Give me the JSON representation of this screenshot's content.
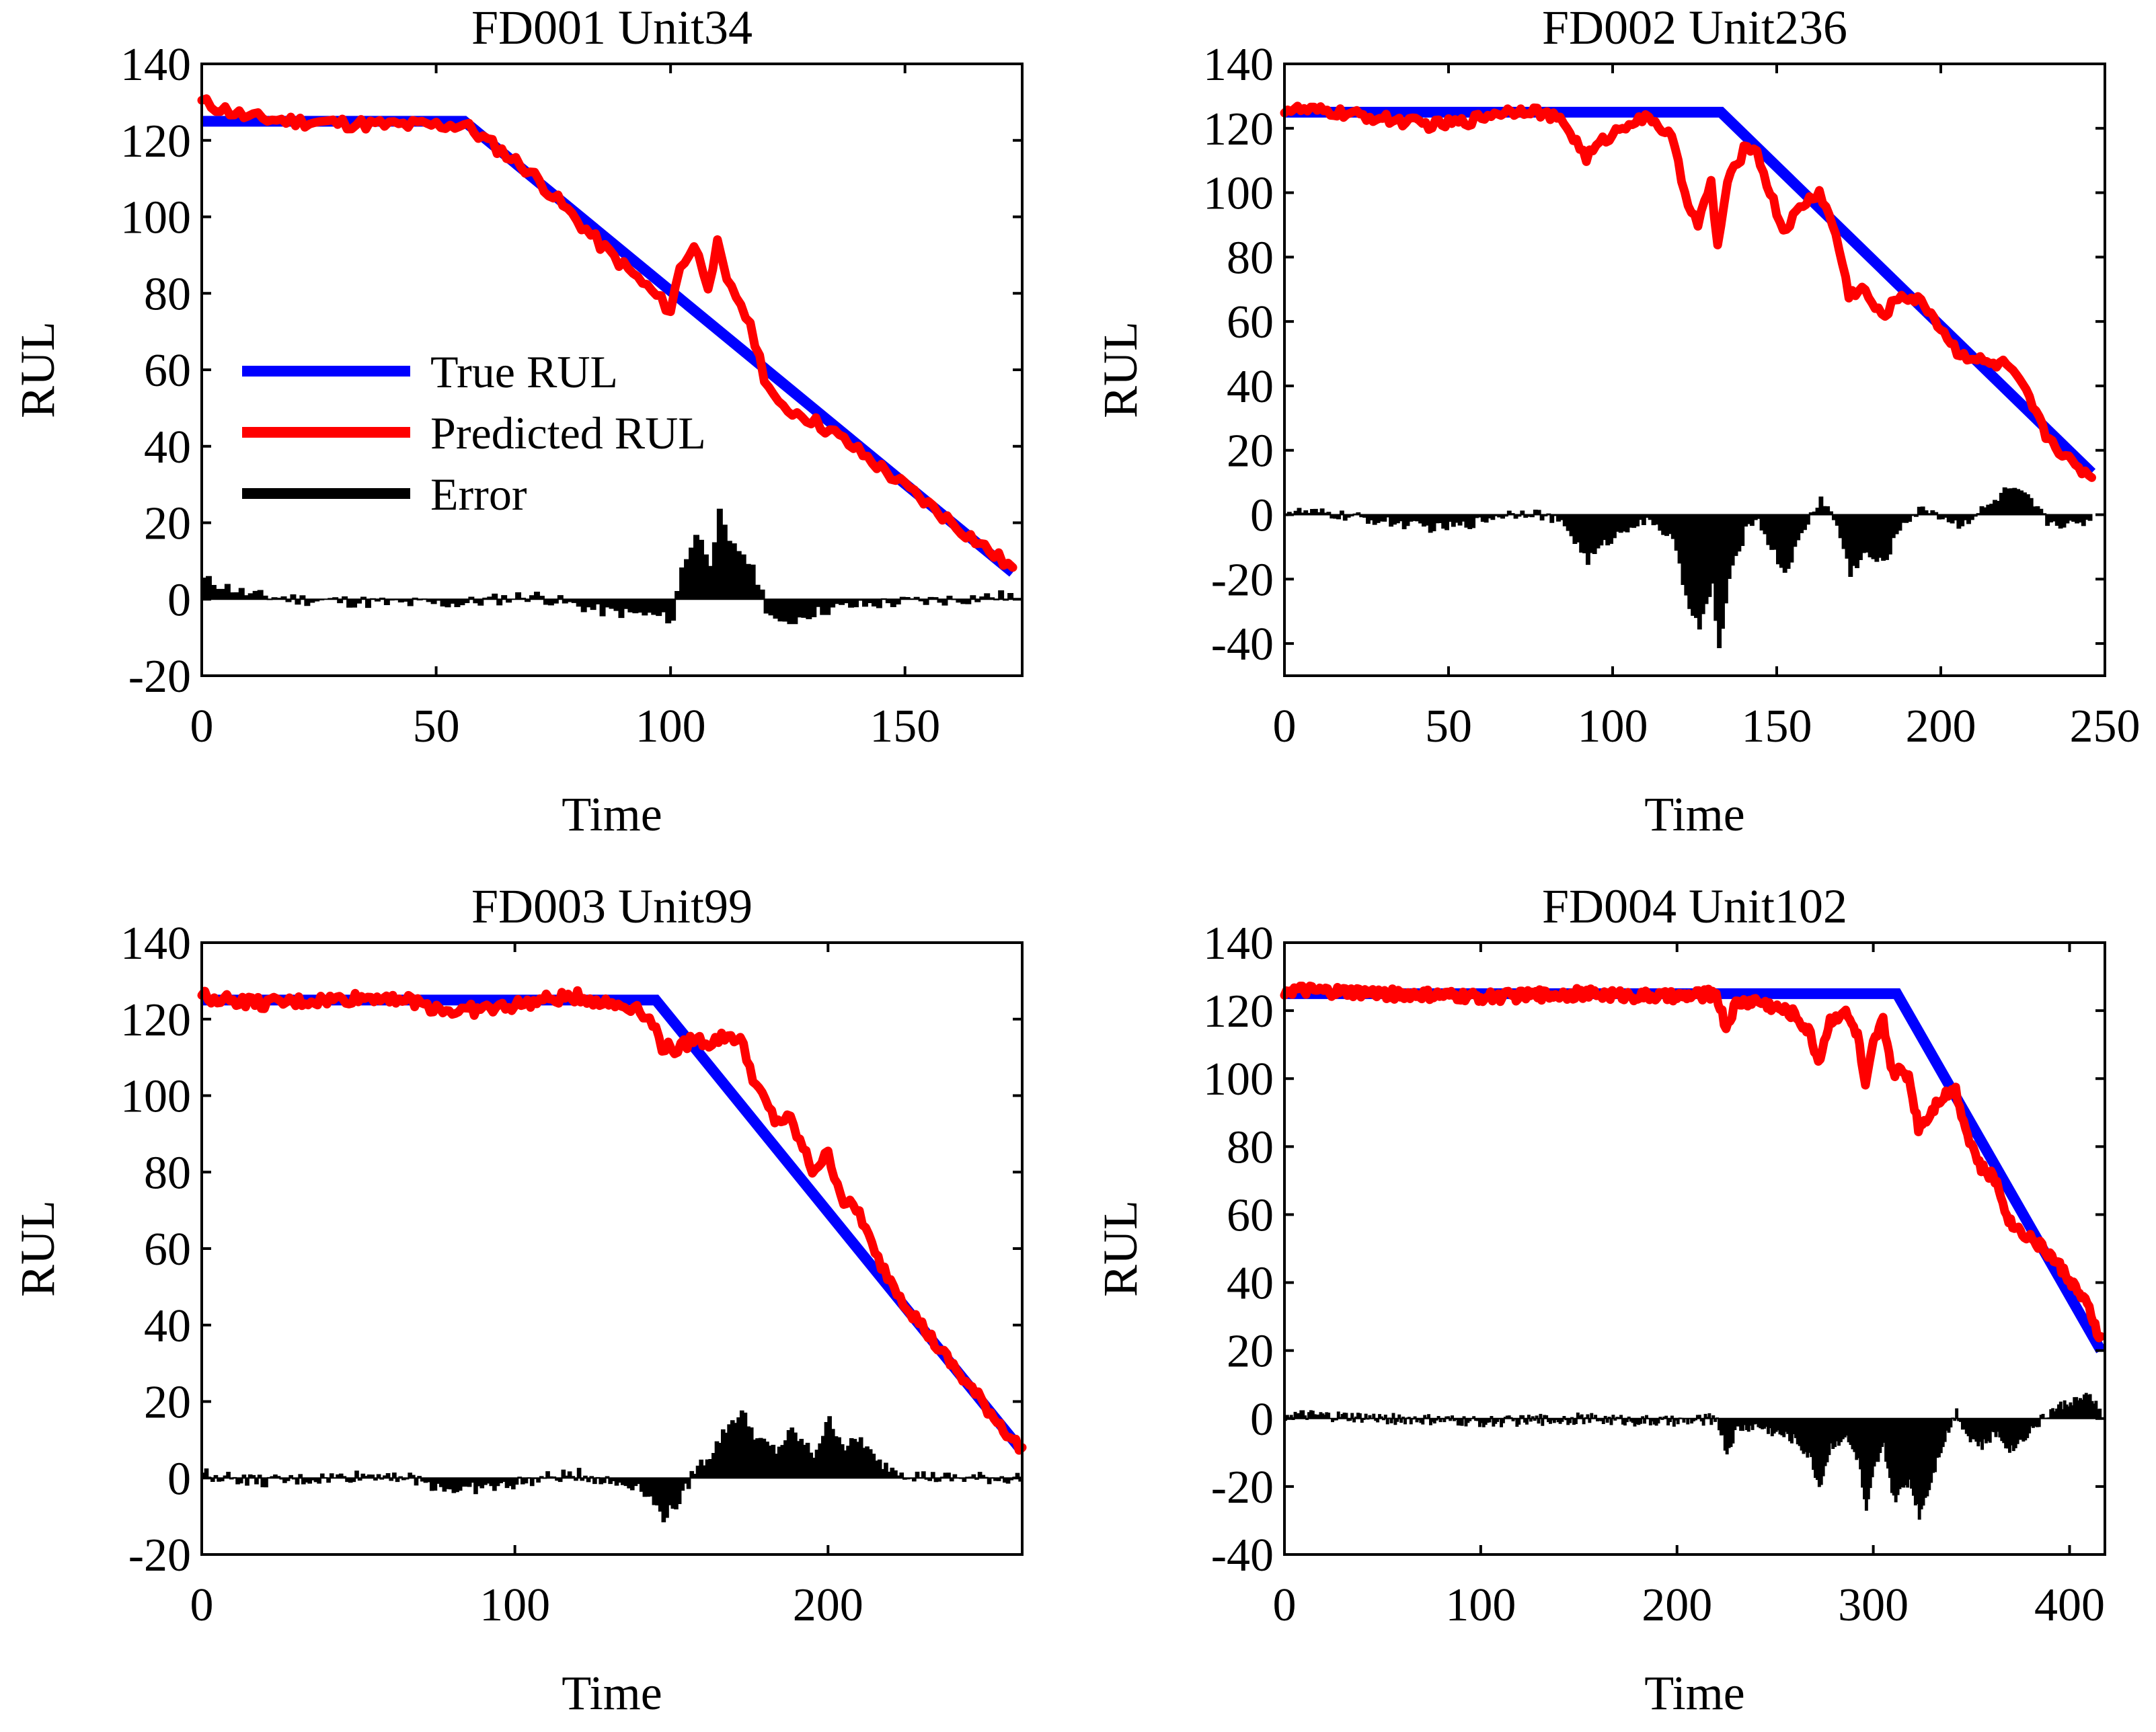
{
  "figure": {
    "background": "#ffffff"
  },
  "legend_entries": [
    "True RUL",
    "Predicted RUL",
    "Error"
  ],
  "colors": {
    "true": "#0000ff",
    "pred": "#ff0000",
    "error": "#000000"
  },
  "chart_data": [
    {
      "id": "fd001",
      "type": "line",
      "title": "FD001 Unit34",
      "xlabel": "Time",
      "ylabel": "RUL",
      "xlim": [
        0,
        175
      ],
      "ylim": [
        -20,
        140
      ],
      "xticks": [
        0,
        50,
        100,
        150
      ],
      "yticks": [
        -20,
        0,
        20,
        40,
        60,
        80,
        100,
        120,
        140
      ],
      "grid": false,
      "legend": "center-left",
      "end_time": 173,
      "true_rul": {
        "max": 125,
        "knee": 56,
        "end_value": 7
      },
      "error_keypoints": [
        [
          0,
          5
        ],
        [
          10,
          1
        ],
        [
          20,
          0
        ],
        [
          40,
          -1
        ],
        [
          55,
          -1
        ],
        [
          70,
          1
        ],
        [
          85,
          -3
        ],
        [
          95,
          -4
        ],
        [
          100,
          -5
        ],
        [
          102,
          8
        ],
        [
          105,
          17
        ],
        [
          108,
          10
        ],
        [
          110,
          22
        ],
        [
          112,
          14
        ],
        [
          115,
          12
        ],
        [
          118,
          5
        ],
        [
          120,
          -2
        ],
        [
          123,
          -7
        ],
        [
          128,
          -4
        ],
        [
          135,
          -2
        ],
        [
          145,
          -1
        ],
        [
          160,
          0
        ],
        [
          173,
          1
        ]
      ],
      "series": [
        {
          "name": "True RUL",
          "color": "#0000ff"
        },
        {
          "name": "Predicted RUL",
          "color": "#ff0000",
          "note": "True RUL + Error"
        },
        {
          "name": "Error",
          "color": "#000000",
          "kind": "stairs-filled"
        }
      ]
    },
    {
      "id": "fd002",
      "type": "line",
      "title": "FD002 Unit236",
      "xlabel": "Time",
      "ylabel": "RUL",
      "xlim": [
        0,
        250
      ],
      "ylim": [
        -50,
        140
      ],
      "xticks": [
        0,
        50,
        100,
        150,
        200,
        250
      ],
      "yticks": [
        -40,
        -20,
        0,
        20,
        40,
        60,
        80,
        100,
        120,
        140
      ],
      "grid": false,
      "end_time": 246,
      "true_rul": {
        "max": 125,
        "knee": 133,
        "end_value": 13
      },
      "error_keypoints": [
        [
          0,
          1
        ],
        [
          15,
          0
        ],
        [
          30,
          -2
        ],
        [
          45,
          -4
        ],
        [
          55,
          -3
        ],
        [
          65,
          0
        ],
        [
          75,
          1
        ],
        [
          85,
          -3
        ],
        [
          92,
          -14
        ],
        [
          97,
          -9
        ],
        [
          105,
          -3
        ],
        [
          112,
          -2
        ],
        [
          118,
          -8
        ],
        [
          122,
          -25
        ],
        [
          126,
          -35
        ],
        [
          130,
          -22
        ],
        [
          132,
          -42
        ],
        [
          135,
          -20
        ],
        [
          140,
          -5
        ],
        [
          143,
          0
        ],
        [
          148,
          -10
        ],
        [
          152,
          -18
        ],
        [
          158,
          -4
        ],
        [
          163,
          5
        ],
        [
          168,
          -3
        ],
        [
          172,
          -18
        ],
        [
          176,
          -12
        ],
        [
          182,
          -15
        ],
        [
          188,
          -2
        ],
        [
          195,
          2
        ],
        [
          205,
          -3
        ],
        [
          215,
          3
        ],
        [
          220,
          8
        ],
        [
          226,
          5
        ],
        [
          232,
          -2
        ],
        [
          240,
          -3
        ],
        [
          246,
          -1
        ]
      ],
      "series": [
        {
          "name": "True RUL",
          "color": "#0000ff"
        },
        {
          "name": "Predicted RUL",
          "color": "#ff0000",
          "note": "True RUL + Error"
        },
        {
          "name": "Error",
          "color": "#000000",
          "kind": "stairs-filled"
        }
      ]
    },
    {
      "id": "fd003",
      "type": "line",
      "title": "FD003 Unit99",
      "xlabel": "Time",
      "ylabel": "RUL",
      "xlim": [
        0,
        262
      ],
      "ylim": [
        -20,
        140
      ],
      "xticks": [
        0,
        100,
        200
      ],
      "yticks": [
        -20,
        0,
        20,
        40,
        60,
        80,
        100,
        120,
        140
      ],
      "grid": false,
      "end_time": 262,
      "true_rul": {
        "max": 125,
        "knee": 145,
        "end_value": 7
      },
      "error_keypoints": [
        [
          0,
          1
        ],
        [
          20,
          -1
        ],
        [
          40,
          0
        ],
        [
          60,
          1
        ],
        [
          80,
          -3
        ],
        [
          95,
          -2
        ],
        [
          110,
          0
        ],
        [
          120,
          1
        ],
        [
          130,
          -1
        ],
        [
          140,
          -2
        ],
        [
          147,
          -10
        ],
        [
          152,
          -6
        ],
        [
          157,
          2
        ],
        [
          162,
          6
        ],
        [
          168,
          14
        ],
        [
          172,
          17
        ],
        [
          177,
          10
        ],
        [
          183,
          7
        ],
        [
          188,
          12
        ],
        [
          195,
          6
        ],
        [
          200,
          15
        ],
        [
          205,
          8
        ],
        [
          210,
          10
        ],
        [
          215,
          4
        ],
        [
          225,
          1
        ],
        [
          235,
          0
        ],
        [
          245,
          0
        ],
        [
          262,
          0
        ]
      ],
      "series": [
        {
          "name": "True RUL",
          "color": "#0000ff"
        },
        {
          "name": "Predicted RUL",
          "color": "#ff0000",
          "note": "True RUL + Error"
        },
        {
          "name": "Error",
          "color": "#000000",
          "kind": "stairs-filled"
        }
      ]
    },
    {
      "id": "fd004",
      "type": "line",
      "title": "FD004 Unit102",
      "xlabel": "Time",
      "ylabel": "RUL",
      "xlim": [
        0,
        418
      ],
      "ylim": [
        -40,
        140
      ],
      "xticks": [
        0,
        100,
        200,
        300,
        400
      ],
      "yticks": [
        -40,
        -20,
        0,
        20,
        40,
        60,
        80,
        100,
        120,
        140
      ],
      "grid": false,
      "end_time": 416,
      "true_rul": {
        "max": 125,
        "knee": 312,
        "end_value": 20
      },
      "error_keypoints": [
        [
          0,
          1
        ],
        [
          50,
          0
        ],
        [
          100,
          -1
        ],
        [
          150,
          0
        ],
        [
          200,
          -1
        ],
        [
          220,
          0
        ],
        [
          225,
          -10
        ],
        [
          230,
          -3
        ],
        [
          240,
          -2
        ],
        [
          250,
          -4
        ],
        [
          260,
          -6
        ],
        [
          268,
          -12
        ],
        [
          272,
          -20
        ],
        [
          278,
          -8
        ],
        [
          285,
          -5
        ],
        [
          292,
          -12
        ],
        [
          296,
          -28
        ],
        [
          300,
          -15
        ],
        [
          305,
          -8
        ],
        [
          310,
          -24
        ],
        [
          318,
          -18
        ],
        [
          323,
          -28
        ],
        [
          328,
          -20
        ],
        [
          333,
          -10
        ],
        [
          338,
          -3
        ],
        [
          342,
          2
        ],
        [
          348,
          -5
        ],
        [
          355,
          -8
        ],
        [
          362,
          -4
        ],
        [
          370,
          -9
        ],
        [
          380,
          -3
        ],
        [
          390,
          2
        ],
        [
          400,
          5
        ],
        [
          410,
          6
        ],
        [
          416,
          3
        ]
      ],
      "series": [
        {
          "name": "True RUL",
          "color": "#0000ff"
        },
        {
          "name": "Predicted RUL",
          "color": "#ff0000",
          "note": "True RUL + Error"
        },
        {
          "name": "Error",
          "color": "#000000",
          "kind": "stairs-filled"
        }
      ]
    }
  ]
}
